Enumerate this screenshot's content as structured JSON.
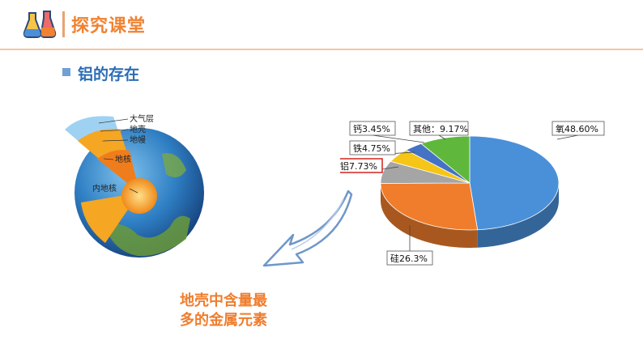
{
  "header": {
    "title": "探究课堂",
    "logo_icon": "lab-flask-icon"
  },
  "section": {
    "subtitle": "铝的存在"
  },
  "earth": {
    "labels": [
      "大气层",
      "地壳",
      "地幔",
      "地核",
      "内地核"
    ]
  },
  "caption": {
    "line1": "地壳中含量最",
    "line2": "多的金属元素"
  },
  "chart_data": {
    "type": "pie",
    "title": "",
    "slices": [
      {
        "label": "氧48.60%",
        "name": "氧",
        "value": 48.6,
        "color": "#4a90d9"
      },
      {
        "label": "硅26.3%",
        "name": "硅",
        "value": 26.3,
        "color": "#f07d2c"
      },
      {
        "label": "铝7.73%",
        "name": "铝",
        "value": 7.73,
        "color": "#a5a5a5"
      },
      {
        "label": "铁4.75%",
        "name": "铁",
        "value": 4.75,
        "color": "#f5c518"
      },
      {
        "label": "钙3.45%",
        "name": "钙",
        "value": 3.45,
        "color": "#4472c4"
      },
      {
        "label": "其他：9.17%",
        "name": "其他",
        "value": 9.17,
        "color": "#5fb83c"
      }
    ],
    "highlight": "铝7.73%"
  }
}
